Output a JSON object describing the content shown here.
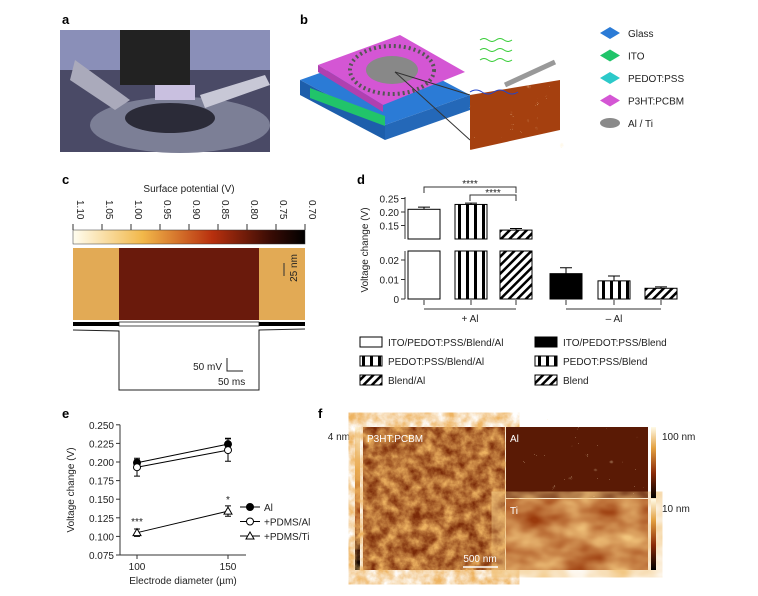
{
  "panels": {
    "a": {
      "label": "a"
    },
    "b": {
      "label": "b",
      "legend": [
        {
          "label": "Glass",
          "color": "#2b7bd6"
        },
        {
          "label": "ITO",
          "color": "#21c46a"
        },
        {
          "label": "PEDOT:PSS",
          "color": "#2cc9c9"
        },
        {
          "label": "P3HT:PCBM",
          "color": "#d456d4"
        },
        {
          "label": "Al / Ti",
          "color": "#8a8a8a"
        }
      ]
    },
    "c": {
      "label": "c",
      "title": "Surface potential (V)",
      "colorbar_ticks": [
        "1.10",
        "1.05",
        "1.00",
        "0.95",
        "0.90",
        "0.85",
        "0.80",
        "0.75",
        "0.70"
      ],
      "scale_nm": "25 nm",
      "scale_mv": "50 mV",
      "scale_ms": "50 ms"
    },
    "f": {
      "label": "f",
      "main_label": "P3HT:PCBM",
      "main_scale": "4 nm",
      "al_label": "Al",
      "al_scale": "100 nm",
      "ti_label": "Ti",
      "ti_scale": "10 nm",
      "scalebar": "500 nm"
    }
  },
  "chart_data": [
    {
      "id": "d",
      "label": "d",
      "type": "bar",
      "ylabel": "Voltage change (V)",
      "yticks_top": [
        "0.25",
        "0.20",
        "0.15"
      ],
      "yticks_bottom": [
        "0.02",
        "0.01",
        "0"
      ],
      "broken_axis": true,
      "groups": [
        "+ Al",
        "– Al"
      ],
      "significance": [
        "****",
        "****"
      ],
      "series": [
        {
          "name": "ITO/PEDOT:PSS/Blend/Al",
          "group": "+ Al",
          "pattern": "open",
          "value": 0.21,
          "error": 0.008
        },
        {
          "name": "PEDOT:PSS/Blend/Al",
          "group": "+ Al",
          "pattern": "vertical-stripes",
          "value": 0.228,
          "error": 0.005
        },
        {
          "name": "Blend/Al",
          "group": "+ Al",
          "pattern": "diagonal-hatch",
          "value": 0.133,
          "error": 0.006
        },
        {
          "name": "ITO/PEDOT:PSS/Blend",
          "group": "– Al",
          "pattern": "solid",
          "value": 0.013,
          "error": 0.003
        },
        {
          "name": "PEDOT:PSS/Blend",
          "group": "– Al",
          "pattern": "vertical-stripes",
          "value": 0.0093,
          "error": 0.0025
        },
        {
          "name": "Blend",
          "group": "– Al",
          "pattern": "diagonal-hatch",
          "value": 0.0055,
          "error": 0.0007
        }
      ]
    },
    {
      "id": "e",
      "label": "e",
      "type": "line",
      "xlabel": "Electrode diameter (µm)",
      "ylabel": "Voltage change (V)",
      "x": [
        100,
        150
      ],
      "xticks": [
        "100",
        "150"
      ],
      "yticks": [
        "0.250",
        "0.225",
        "0.200",
        "0.175",
        "0.150",
        "0.125",
        "0.100",
        "0.075"
      ],
      "ylim": [
        0.075,
        0.25
      ],
      "annotations": [
        {
          "x": 100,
          "text": "***"
        },
        {
          "x": 150,
          "text": "*"
        }
      ],
      "legend_position": "right",
      "series": [
        {
          "name": "Al",
          "marker": "filled-circle",
          "values": [
            0.199,
            0.224
          ],
          "errors": [
            0.004,
            0.008
          ]
        },
        {
          "name": "+PDMS/Al",
          "marker": "open-circle",
          "values": [
            0.193,
            0.216
          ],
          "errors": [
            0.012,
            0.015
          ]
        },
        {
          "name": "+PDMS/Ti",
          "marker": "open-triangle",
          "values": [
            0.105,
            0.134
          ],
          "errors": [
            0.005,
            0.007
          ]
        }
      ]
    }
  ]
}
